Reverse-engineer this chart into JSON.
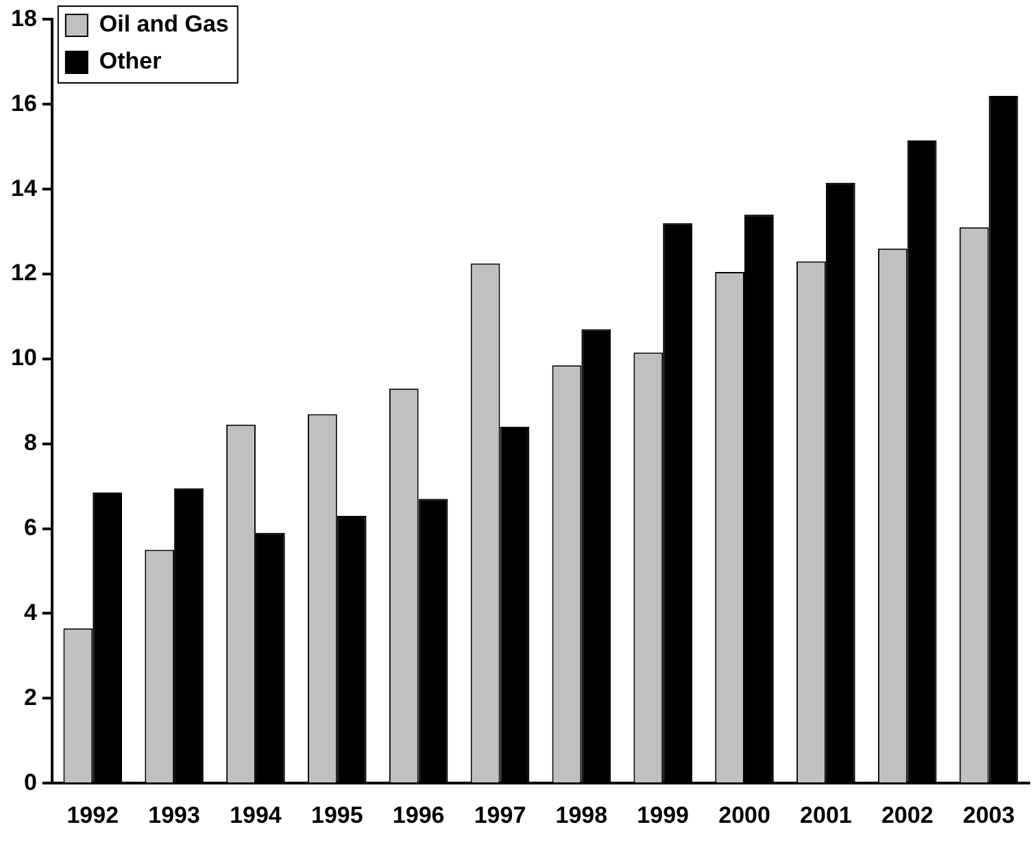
{
  "chart_data": {
    "type": "bar",
    "categories": [
      "1992",
      "1993",
      "1994",
      "1995",
      "1996",
      "1997",
      "1998",
      "1999",
      "2000",
      "2001",
      "2002",
      "2003"
    ],
    "series": [
      {
        "name": "Oil and Gas",
        "color": "#c0c0c0",
        "values": [
          3.65,
          5.5,
          8.45,
          8.7,
          9.3,
          12.25,
          9.85,
          10.15,
          12.05,
          12.3,
          12.6,
          13.1
        ]
      },
      {
        "name": "Other",
        "color": "#000000",
        "values": [
          6.85,
          6.95,
          5.9,
          6.3,
          6.7,
          8.4,
          10.7,
          13.2,
          13.4,
          14.15,
          15.15,
          16.2
        ]
      }
    ],
    "ylim": [
      0,
      18
    ],
    "yticks": [
      0,
      2,
      4,
      6,
      8,
      10,
      12,
      14,
      16,
      18
    ],
    "grid": false,
    "legend": "top left"
  }
}
